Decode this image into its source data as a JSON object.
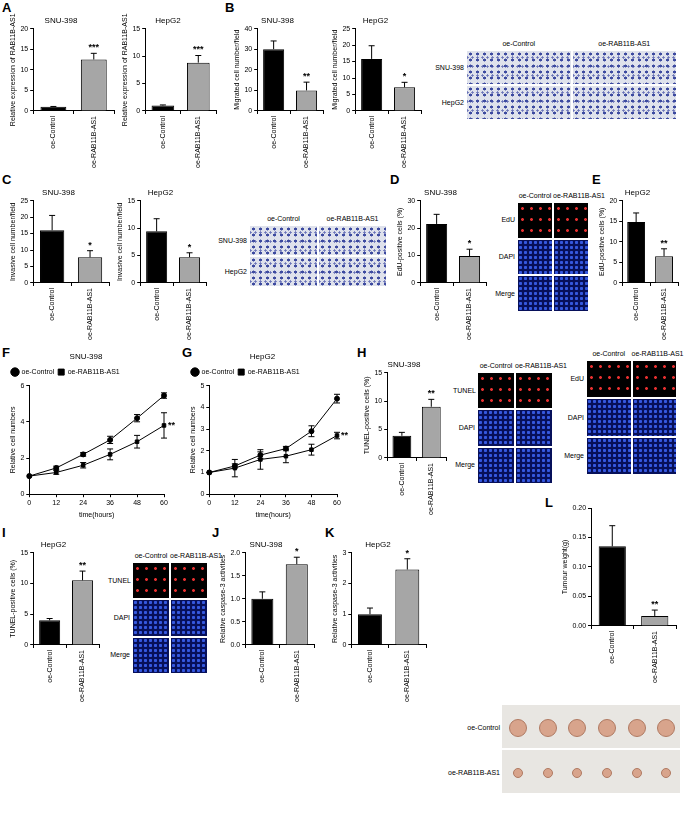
{
  "figure": {
    "panel_labels": [
      "A",
      "B",
      "C",
      "D",
      "E",
      "F",
      "G",
      "H",
      "I",
      "J",
      "K",
      "L"
    ],
    "images": [
      {
        "columns": [
          "oe-Control",
          "oe-RAB11B-AS1"
        ],
        "rows": [
          "SNU-398",
          "HepG2"
        ]
      },
      {
        "columns": [
          "oe-Control",
          "oe-RAB11B-AS1"
        ],
        "rows": [
          "SNU-398",
          "HepG2"
        ]
      },
      {
        "columns": [
          "oe-Control",
          "oe-RAB11B-AS1"
        ],
        "rows": [
          "EdU",
          "DAPI",
          "Merge"
        ]
      },
      {
        "columns": [
          "oe-Control",
          "oe-RAB11B-AS1"
        ],
        "rows": [
          "TUNEL",
          "DAPI",
          "Merge"
        ]
      },
      {
        "columns": [
          "oe-Control",
          "oe-RAB11B-AS1"
        ],
        "rows": [
          "EdU",
          "DAPI",
          "Merge"
        ]
      },
      {
        "columns": [
          "oe-Control",
          "oe-RAB11B-AS1"
        ],
        "rows": [
          "TUNEL",
          "DAPI",
          "Merge"
        ]
      },
      {
        "columns": [],
        "rows": [
          "oe-Control",
          "oe-RAB11B-AS1"
        ]
      }
    ]
  },
  "chart_data": [
    {
      "type": "bar",
      "title": "SNU-398",
      "ylabel": "Relative expression of RAB11B-AS1",
      "categories": [
        "oe-Control",
        "oe-RAB11B-AS1"
      ],
      "values": [
        1,
        12.5
      ],
      "errors": [
        0.1,
        1.5
      ],
      "colors": [
        "#000000",
        "#a6a6a6"
      ],
      "ylim": [
        0,
        20
      ],
      "yticks": [
        0,
        5,
        10,
        15,
        20
      ],
      "grid": false,
      "annotations": [
        {
          "category": "oe-RAB11B-AS1",
          "text": "***"
        }
      ]
    },
    {
      "type": "bar",
      "title": "HepG2",
      "ylabel": "Relative expression of RAB11B-AS1",
      "categories": [
        "oe-Control",
        "oe-RAB11B-AS1"
      ],
      "values": [
        1,
        8.8
      ],
      "errors": [
        0.1,
        1.3
      ],
      "colors": [
        "#000000",
        "#a6a6a6"
      ],
      "ylim": [
        0,
        15
      ],
      "yticks": [
        0,
        5,
        10,
        15
      ],
      "grid": false,
      "annotations": [
        {
          "category": "oe-RAB11B-AS1",
          "text": "***"
        }
      ]
    },
    {
      "type": "bar",
      "title": "SNU-398",
      "ylabel": "Migrated cell number/field",
      "categories": [
        "oe-Control",
        "oe-RAB11B-AS1"
      ],
      "values": [
        30,
        10
      ],
      "errors": [
        4,
        4
      ],
      "colors": [
        "#000000",
        "#a6a6a6"
      ],
      "ylim": [
        0,
        40
      ],
      "yticks": [
        0,
        10,
        20,
        30,
        40
      ],
      "grid": false,
      "annotations": [
        {
          "category": "oe-RAB11B-AS1",
          "text": "**"
        }
      ]
    },
    {
      "type": "bar",
      "title": "HepG2",
      "ylabel": "Migrated cell number/field",
      "categories": [
        "oe-Control",
        "oe-RAB11B-AS1"
      ],
      "values": [
        15.8,
        7.2
      ],
      "errors": [
        4,
        1.5
      ],
      "colors": [
        "#000000",
        "#a6a6a6"
      ],
      "ylim": [
        0,
        25
      ],
      "yticks": [
        0,
        5,
        10,
        15,
        20,
        25
      ],
      "grid": false,
      "annotations": [
        {
          "category": "oe-RAB11B-AS1",
          "text": "*"
        }
      ]
    },
    {
      "type": "bar",
      "title": "SNU-398",
      "ylabel": "Invasive cell number/field",
      "categories": [
        "oe-Control",
        "oe-RAB11B-AS1"
      ],
      "values": [
        16,
        7.8
      ],
      "errors": [
        4.5,
        2
      ],
      "colors": [
        "#000000",
        "#a6a6a6"
      ],
      "ylim": [
        0,
        25
      ],
      "yticks": [
        0,
        5,
        10,
        15,
        20,
        25
      ],
      "grid": false,
      "annotations": [
        {
          "category": "oe-RAB11B-AS1",
          "text": "*"
        }
      ]
    },
    {
      "type": "bar",
      "title": "HepG2",
      "ylabel": "Invasive cell number/field",
      "categories": [
        "oe-Control",
        "oe-RAB11B-AS1"
      ],
      "values": [
        9.4,
        4.7
      ],
      "errors": [
        2.3,
        0.8
      ],
      "colors": [
        "#000000",
        "#a6a6a6"
      ],
      "ylim": [
        0,
        15
      ],
      "yticks": [
        0,
        5,
        10,
        15
      ],
      "grid": false,
      "annotations": [
        {
          "category": "oe-RAB11B-AS1",
          "text": "*"
        }
      ]
    },
    {
      "type": "bar",
      "title": "SNU-398",
      "ylabel": "EdU-positive cells (%)",
      "categories": [
        "oe-Control",
        "oe-RAB11B-AS1"
      ],
      "values": [
        21.5,
        9.8
      ],
      "errors": [
        3.5,
        2.5
      ],
      "colors": [
        "#000000",
        "#a6a6a6"
      ],
      "ylim": [
        0,
        30
      ],
      "yticks": [
        0,
        10,
        20,
        30
      ],
      "grid": false,
      "annotations": [
        {
          "category": "oe-RAB11B-AS1",
          "text": "*"
        }
      ]
    },
    {
      "type": "bar",
      "title": "HepG2",
      "ylabel": "EdU-positive cells (%)",
      "categories": [
        "oe-Control",
        "oe-RAB11B-AS1"
      ],
      "values": [
        14.8,
        6.5
      ],
      "errors": [
        2.2,
        1.8
      ],
      "colors": [
        "#000000",
        "#a6a6a6"
      ],
      "ylim": [
        0,
        20
      ],
      "yticks": [
        0,
        5,
        10,
        15,
        20
      ],
      "grid": false,
      "annotations": [
        {
          "category": "oe-RAB11B-AS1",
          "text": "**"
        }
      ]
    },
    {
      "type": "line",
      "title": "SNU-398",
      "xlabel": "time(hours)",
      "ylabel": "Relative cell numbers",
      "x": [
        0,
        12,
        24,
        36,
        48,
        60
      ],
      "xlim": [
        0,
        60
      ],
      "xticks": [
        0,
        12,
        24,
        36,
        48,
        60
      ],
      "ylim": [
        0,
        6
      ],
      "yticks": [
        0,
        2,
        4,
        6
      ],
      "grid": false,
      "legend": "upper left",
      "series": [
        {
          "name": "oe-Control",
          "color": "#000000",
          "marker": "circle",
          "line_style": "solid",
          "values": [
            1,
            1.45,
            2.2,
            3.0,
            4.2,
            5.45
          ],
          "errors": [
            0,
            0.1,
            0.1,
            0.2,
            0.2,
            0.15
          ]
        },
        {
          "name": "oe-RAB11B-AS1",
          "color": "#000000",
          "marker": "square",
          "line_style": "solid",
          "values": [
            1,
            1.2,
            1.6,
            2.2,
            2.9,
            3.8
          ],
          "errors": [
            0,
            0.1,
            0.15,
            0.3,
            0.35,
            0.7
          ]
        }
      ],
      "annotations": [
        {
          "x": 60,
          "text": "**"
        }
      ]
    },
    {
      "type": "line",
      "title": "HepG2",
      "xlabel": "time(hours)",
      "ylabel": "Relative cell numbers",
      "x": [
        0,
        12,
        24,
        36,
        48,
        60
      ],
      "xlim": [
        0,
        60
      ],
      "xticks": [
        0,
        12,
        24,
        36,
        48,
        60
      ],
      "ylim": [
        0,
        5
      ],
      "yticks": [
        0,
        1,
        2,
        3,
        4,
        5
      ],
      "grid": false,
      "legend": "upper left",
      "series": [
        {
          "name": "oe-Control",
          "color": "#000000",
          "marker": "circle",
          "line_style": "solid",
          "values": [
            1,
            1.3,
            1.8,
            2.1,
            2.9,
            4.4
          ],
          "errors": [
            0,
            0.1,
            0.15,
            0.1,
            0.25,
            0.2
          ]
        },
        {
          "name": "oe-RAB11B-AS1",
          "color": "#000000",
          "marker": "square",
          "line_style": "solid",
          "values": [
            1,
            1.2,
            1.6,
            1.75,
            2.05,
            2.7
          ],
          "errors": [
            0,
            0.4,
            0.45,
            0.3,
            0.25,
            0.15
          ]
        }
      ],
      "annotations": [
        {
          "x": 60,
          "text": "**"
        }
      ]
    },
    {
      "type": "bar",
      "title": "SNU-398",
      "ylabel": "TUNEL-positive cells (%)",
      "categories": [
        "oe-Control",
        "oe-RAB11B-AS1"
      ],
      "values": [
        3.9,
        9
      ],
      "errors": [
        0.6,
        1.3
      ],
      "colors": [
        "#000000",
        "#a6a6a6"
      ],
      "ylim": [
        0,
        15
      ],
      "yticks": [
        0,
        5,
        10,
        15
      ],
      "grid": false,
      "annotations": [
        {
          "category": "oe-RAB11B-AS1",
          "text": "**"
        }
      ]
    },
    {
      "type": "bar",
      "title": "HepG2",
      "ylabel": "TUNEL-positive cells (%)",
      "categories": [
        "oe-Control",
        "oe-RAB11B-AS1"
      ],
      "values": [
        4,
        10.5
      ],
      "errors": [
        0.3,
        1.5
      ],
      "colors": [
        "#000000",
        "#a6a6a6"
      ],
      "ylim": [
        0,
        15
      ],
      "yticks": [
        0,
        5,
        10,
        15
      ],
      "grid": false,
      "annotations": [
        {
          "category": "oe-RAB11B-AS1",
          "text": "**"
        }
      ]
    },
    {
      "type": "bar",
      "title": "SNU-398",
      "ylabel": "Relative caspase-3 activities",
      "categories": [
        "oe-Control",
        "oe-RAB11B-AS1"
      ],
      "values": [
        1,
        1.75
      ],
      "errors": [
        0.15,
        0.15
      ],
      "colors": [
        "#000000",
        "#a6a6a6"
      ],
      "ylim": [
        0,
        2
      ],
      "yticks": [
        {
          "value": 0,
          "label": "0.0"
        },
        0.5,
        {
          "value": 1,
          "label": "1.0"
        },
        1.5,
        {
          "value": 2,
          "label": "2.0"
        }
      ],
      "grid": false,
      "annotations": [
        {
          "category": "oe-RAB11B-AS1",
          "text": "*"
        }
      ]
    },
    {
      "type": "bar",
      "title": "HepG2",
      "ylabel": "Relative caspase-3 activities",
      "categories": [
        "oe-Control",
        "oe-RAB11B-AS1"
      ],
      "values": [
        1,
        2.45
      ],
      "errors": [
        0.2,
        0.35
      ],
      "colors": [
        "#000000",
        "#a6a6a6"
      ],
      "ylim": [
        0,
        3
      ],
      "yticks": [
        0,
        1,
        2,
        3
      ],
      "grid": false,
      "annotations": [
        {
          "category": "oe-RAB11B-AS1",
          "text": "*"
        }
      ]
    },
    {
      "type": "bar",
      "ylabel": "Tumour weight(g)",
      "categories": [
        "oe-Control",
        "oe-RAB11B-AS1"
      ],
      "values": [
        0.135,
        0.017
      ],
      "errors": [
        0.035,
        0.01
      ],
      "colors": [
        "#000000",
        "#a6a6a6"
      ],
      "ylim": [
        0,
        0.2
      ],
      "yticks": [
        {
          "value": 0,
          "label": "0.00"
        },
        0.05,
        {
          "value": 0.1,
          "label": "0.10"
        },
        0.15,
        {
          "value": 0.2,
          "label": "0.20"
        }
      ],
      "grid": false,
      "annotations": [
        {
          "category": "oe-RAB11B-AS1",
          "text": "**"
        }
      ]
    }
  ]
}
